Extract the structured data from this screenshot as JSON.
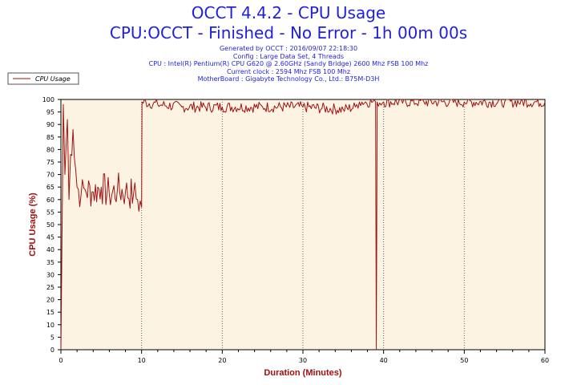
{
  "header": {
    "title": "OCCT 4.4.2 - CPU Usage",
    "subtitle": "CPU:OCCT - Finished - No Error - 1h 00m 00s",
    "info": [
      "Generated by OCCT : 2016/09/07 22:18:30",
      "Config : Large Data Set, 4 Threads",
      "CPU : Intel(R) Pentium(R) CPU G620 @ 2.60GHz (Sandy Bridge) 2600 Mhz FSB 100 Mhz",
      "Current clock : 2594 Mhz FSB 100 Mhz",
      "MotherBoard : Gigabyte Technology Co., Ltd.: B75M-D3H"
    ]
  },
  "colors": {
    "series": "#a01010",
    "plot_background": "#fdf3e3",
    "title": "#1f1fe0"
  },
  "chart_data": {
    "type": "line",
    "title": "OCCT 4.4.2 - CPU Usage",
    "xlabel": "Duration (Minutes)",
    "ylabel": "CPU Usage (%)",
    "xlim": [
      0,
      60
    ],
    "ylim": [
      0,
      100
    ],
    "x_ticks": [
      "0",
      "10",
      "20",
      "30",
      "40",
      "50",
      "60"
    ],
    "y_ticks": [
      "0",
      "5",
      "10",
      "15",
      "20",
      "25",
      "30",
      "35",
      "40",
      "45",
      "50",
      "55",
      "60",
      "65",
      "70",
      "75",
      "80",
      "85",
      "90",
      "95",
      "100"
    ],
    "grid": "dotted vertical lines at x ticks",
    "legend": {
      "position": "top-left",
      "entries": [
        "CPU Usage"
      ]
    },
    "series": [
      {
        "name": "CPU Usage",
        "x": [
          0,
          0.3,
          0.5,
          0.8,
          1.0,
          1.2,
          1.5,
          2.0,
          2.5,
          3.0,
          4.0,
          5.0,
          6.0,
          7.0,
          8.0,
          9.0,
          9.5,
          10.0,
          10.05,
          12,
          15,
          20,
          25,
          30,
          35,
          36.5,
          37,
          39.0,
          39.1,
          39.2,
          40,
          45,
          50,
          55,
          60
        ],
        "y": [
          0,
          98,
          70,
          92,
          60,
          78,
          88,
          65,
          62,
          64,
          63,
          65,
          62,
          64,
          63,
          62,
          60,
          57,
          99,
          98,
          97,
          97,
          97,
          97,
          96,
          97,
          99,
          99,
          0,
          99,
          99,
          99,
          99,
          99,
          99
        ]
      }
    ]
  }
}
